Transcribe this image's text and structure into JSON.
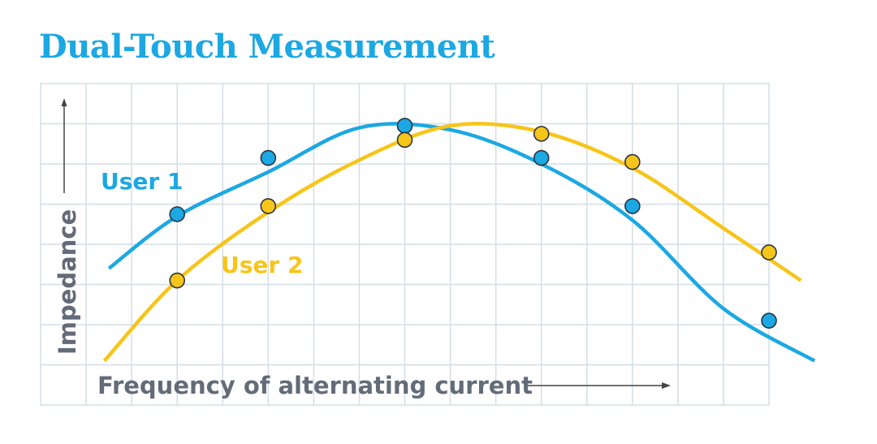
{
  "chart_data": {
    "type": "line",
    "title": "Dual-Touch Measurement",
    "xlabel": "Frequency of alternating current",
    "ylabel": "Impedance",
    "xlim": [
      0,
      16
    ],
    "ylim": [
      0,
      8
    ],
    "grid": true,
    "legend": "inline labels",
    "series": [
      {
        "name": "User 1",
        "color": "#1ba8e3",
        "curve": [
          [
            1.5,
            3.4
          ],
          [
            3,
            4.7
          ],
          [
            5,
            5.8
          ],
          [
            7,
            6.9
          ],
          [
            9,
            6.85
          ],
          [
            11,
            6
          ],
          [
            13,
            4.6
          ],
          [
            15,
            2.4
          ],
          [
            17,
            1.1
          ]
        ],
        "points": [
          [
            3,
            4.75
          ],
          [
            5,
            6.15
          ],
          [
            8,
            6.95
          ],
          [
            11,
            6.15
          ],
          [
            13,
            4.95
          ],
          [
            16,
            2.1
          ]
        ]
      },
      {
        "name": "User 2",
        "color": "#f7c518",
        "curve": [
          [
            1.4,
            1.1
          ],
          [
            3,
            3.1
          ],
          [
            5,
            4.8
          ],
          [
            7,
            6.1
          ],
          [
            9,
            6.95
          ],
          [
            11,
            6.8
          ],
          [
            13,
            5.9
          ],
          [
            15,
            4.4
          ],
          [
            16.7,
            3.1
          ]
        ],
        "points": [
          [
            3,
            3.1
          ],
          [
            5,
            4.95
          ],
          [
            8,
            6.6
          ],
          [
            11,
            6.75
          ],
          [
            13,
            6.05
          ],
          [
            16,
            3.8
          ]
        ]
      }
    ]
  }
}
